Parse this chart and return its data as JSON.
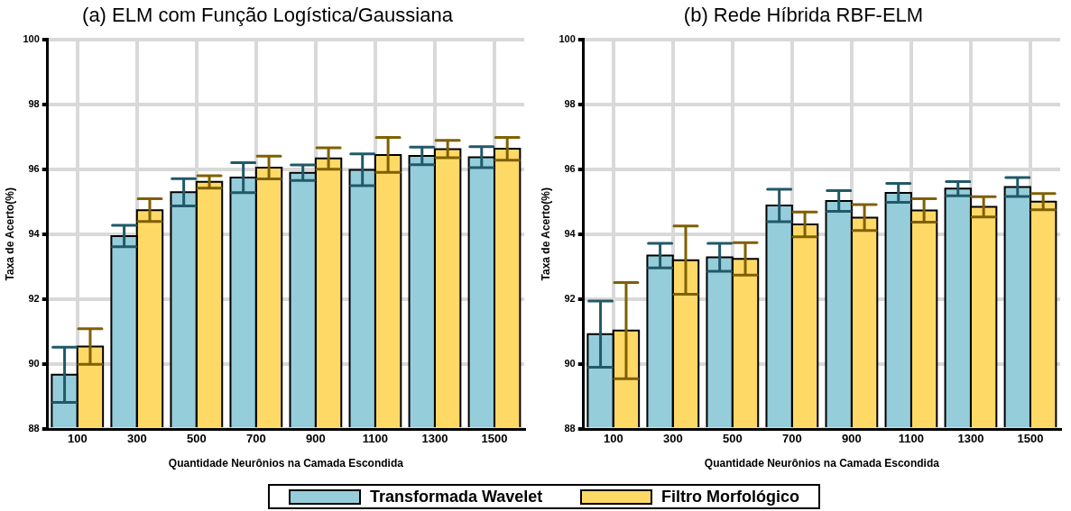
{
  "chart_data": [
    {
      "type": "bar",
      "title": "(a) ELM com Função Logística/Gaussiana",
      "xlabel": "Quantidade Neurônios na Camada Escondida",
      "ylabel": "Taxa de Acerto(%)",
      "categories": [
        "100",
        "300",
        "500",
        "700",
        "900",
        "1100",
        "1300",
        "1500"
      ],
      "series": [
        {
          "name": "Transformada Wavelet",
          "color": "#96cddb",
          "values": [
            89.67,
            93.94,
            95.29,
            95.74,
            95.89,
            95.98,
            96.41,
            96.37
          ],
          "errors": [
            0.85,
            0.33,
            0.42,
            0.46,
            0.24,
            0.49,
            0.27,
            0.32
          ]
        },
        {
          "name": "Filtro Morfológico",
          "color": "#ffd966",
          "values": [
            90.54,
            94.74,
            95.61,
            96.05,
            96.33,
            96.44,
            96.62,
            96.63
          ],
          "errors": [
            0.55,
            0.35,
            0.19,
            0.35,
            0.33,
            0.54,
            0.27,
            0.35
          ]
        }
      ],
      "ylim": [
        88,
        100
      ],
      "yticks": [
        88,
        90,
        92,
        94,
        96,
        98,
        100
      ],
      "grid": true,
      "legend": "bottom"
    },
    {
      "type": "bar",
      "title": "(b) Rede Híbrida RBF-ELM",
      "xlabel": "Quantidade Neurônios na Camada Escondida",
      "ylabel": "Taxa de Acerto(%)",
      "categories": [
        "100",
        "300",
        "500",
        "700",
        "900",
        "1100",
        "1300",
        "1500"
      ],
      "series": [
        {
          "color": "#96cddb",
          "values": [
            90.92,
            93.34,
            93.29,
            94.88,
            95.02,
            95.27,
            95.4,
            95.45
          ],
          "errors": [
            1.02,
            0.38,
            0.43,
            0.5,
            0.32,
            0.29,
            0.22,
            0.29
          ]
        },
        {
          "color": "#ffd966",
          "values": [
            91.03,
            93.2,
            93.24,
            94.3,
            94.51,
            94.73,
            94.84,
            95.0
          ],
          "errors": [
            1.48,
            1.05,
            0.5,
            0.38,
            0.4,
            0.36,
            0.31,
            0.25
          ]
        }
      ],
      "ylim": [
        88,
        100
      ],
      "yticks": [
        88,
        90,
        92,
        94,
        96,
        98,
        100
      ],
      "grid": true
    }
  ]
}
